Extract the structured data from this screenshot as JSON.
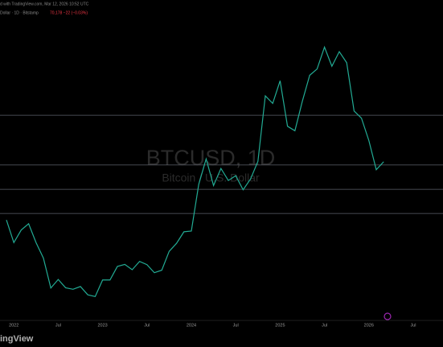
{
  "chart_data": {
    "type": "line",
    "header": "d with TradingView.com, Mar 12, 2026 10:52 UTC",
    "symbol_line": "Dollar · 1D · Bitstamp",
    "quote": "70,178 −22 (−0.03%)",
    "watermark_title": "BTCUSD, 1D",
    "watermark_subtitle": "Bitcoin / U.S. Dollar",
    "logo": "ingView",
    "categories": [
      null,
      "2022",
      null,
      null,
      null,
      null,
      null,
      "Jul",
      null,
      null,
      null,
      null,
      null,
      "2023",
      null,
      null,
      null,
      null,
      null,
      "Jul",
      null,
      null,
      null,
      null,
      null,
      "2024",
      null,
      null,
      null,
      null,
      null,
      "Jul",
      null,
      null,
      null,
      null,
      null,
      "2025",
      null,
      null,
      null,
      null,
      null,
      "Jul",
      null,
      null,
      null,
      null,
      null,
      "2026",
      null,
      null,
      null,
      null,
      null,
      "Jul"
    ],
    "series": [
      {
        "name": "BTCUSD",
        "color": "#22ab94",
        "values": [
          47000,
          38000,
          43000,
          45500,
          38000,
          31800,
          19900,
          23300,
          20000,
          19400,
          20500,
          17200,
          16500,
          23100,
          23100,
          28500,
          29300,
          27200,
          30500,
          29200,
          26000,
          27000,
          34500,
          37700,
          42300,
          42600,
          61200,
          71300,
          60700,
          67500,
          62700,
          64600,
          59000,
          63300,
          70300,
          96400,
          93400,
          102400,
          84300,
          82500,
          94200,
          104600,
          107100,
          115800,
          108200,
          114000,
          109600,
          90400,
          87500,
          78600,
          67000,
          70178,
          null,
          null,
          null,
          null
        ]
      }
    ],
    "levels": [
      88700,
      68900,
      59200,
      49600
    ],
    "level_color": "#5d606b",
    "ylim": [
      7000,
      132000
    ]
  }
}
